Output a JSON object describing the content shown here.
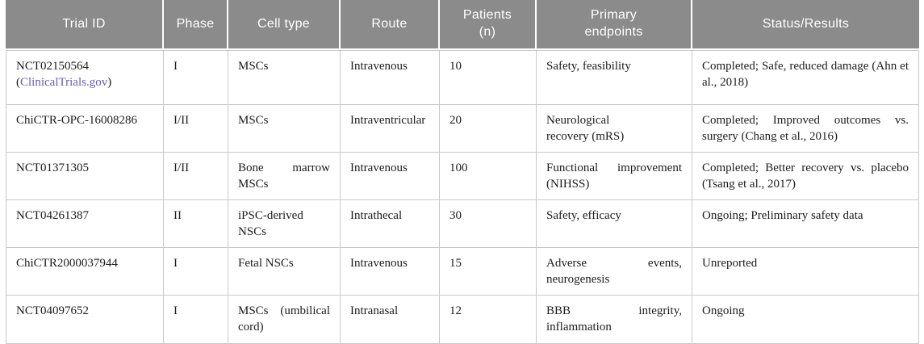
{
  "theme": {
    "header_bg": "#8b8b8b",
    "header_text": "#ffffff",
    "border": "#c9c9c9",
    "text": "#1c1c1c",
    "link": "#685cb8"
  },
  "table": {
    "columns": [
      "Trial ID",
      "Phase",
      "Cell type",
      "Route",
      "Patients\n(n)",
      "Primary\nendpoints",
      "Status/Results"
    ],
    "rows": [
      {
        "trial_id": "NCT02150564",
        "paren_open": "(",
        "trial_link": "ClinicalTrials.gov",
        "paren_close": ")",
        "phase": "I",
        "cell_type": "MSCs",
        "route": "Intravenous",
        "patients": "10",
        "endpoints": "Safety, feasibility",
        "status": "Completed; Safe, reduced damage (Ahn et al., 2018)"
      },
      {
        "trial_id": "ChiCTR-OPC-16008286",
        "phase": "I/II",
        "cell_type": "MSCs",
        "route": "Intraventricular",
        "patients": "20",
        "endpoints": "Neurological\nrecovery (mRS)",
        "status": "Completed; Improved outcomes vs. surgery (Chang et al., 2016)"
      },
      {
        "trial_id": "NCT01371305",
        "phase": "I/II",
        "cell_type": "Bone marrow MSCs",
        "route": "Intravenous",
        "patients": "100",
        "endpoints": "Functional improvement (NIHSS)",
        "status": "Completed; Better recovery vs. placebo (Tsang et al., 2017)"
      },
      {
        "trial_id": "NCT04261387",
        "phase": "II",
        "cell_type": "iPSC-derived NSCs",
        "route": "Intrathecal",
        "patients": "30",
        "endpoints": "Safety, efficacy",
        "status": "Ongoing; Preliminary safety data"
      },
      {
        "trial_id": "ChiCTR2000037944",
        "phase": "I",
        "cell_type": "Fetal NSCs",
        "route": "Intravenous",
        "patients": "15",
        "endpoints": "Adverse events, neurogenesis",
        "status": "Unreported"
      },
      {
        "trial_id": "NCT04097652",
        "phase": "I",
        "cell_type": "MSCs (umbilical cord)",
        "route": "Intranasal",
        "patients": "12",
        "endpoints": "BBB integrity, inflammation",
        "status": "Ongoing"
      }
    ]
  }
}
